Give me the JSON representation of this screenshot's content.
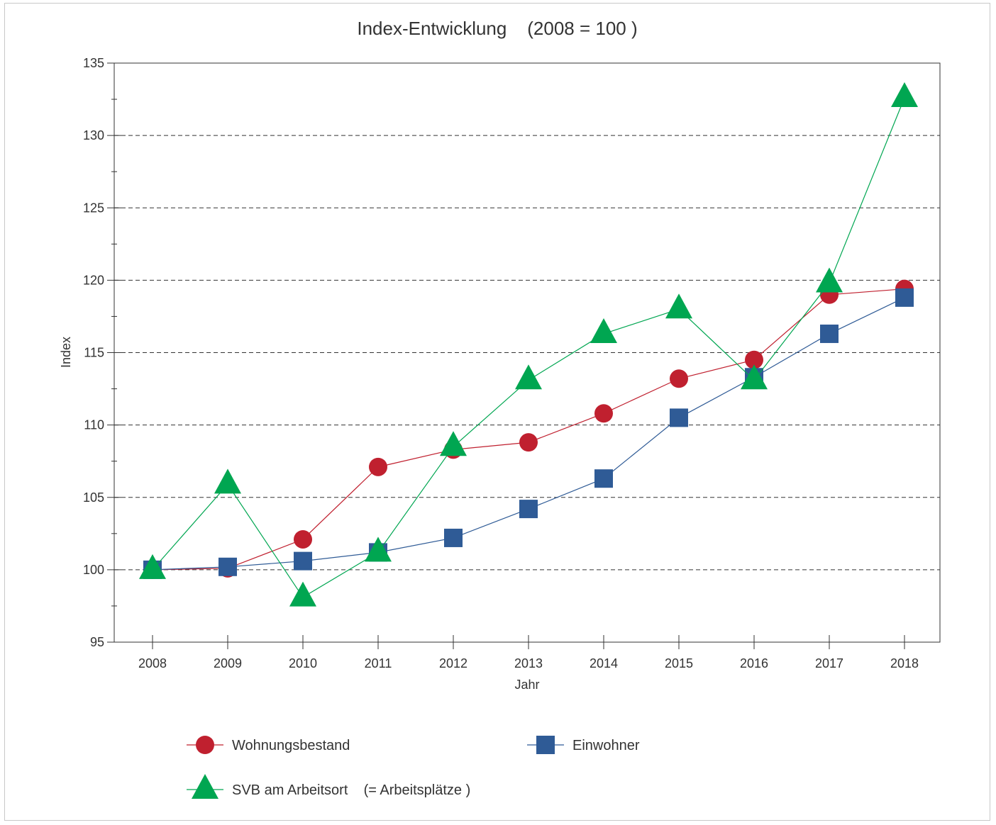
{
  "chart_data": {
    "type": "line",
    "title": "Index-Entwicklung    (2008 = 100 )",
    "xlabel": "Jahr",
    "ylabel": "Index",
    "ylim": [
      95,
      135
    ],
    "yticks": [
      95,
      100,
      105,
      110,
      115,
      120,
      125,
      130,
      135
    ],
    "grid": "horizontal dashed",
    "legend_position": "bottom",
    "categories": [
      "2008",
      "2009",
      "2010",
      "2011",
      "2012",
      "2013",
      "2014",
      "2015",
      "2016",
      "2017",
      "2018"
    ],
    "series": [
      {
        "name": "Wohnungsbestand",
        "marker": "circle",
        "color": "#c0202f",
        "values": [
          100.0,
          100.1,
          102.1,
          107.1,
          108.3,
          108.8,
          110.8,
          113.2,
          114.5,
          119.0,
          119.4
        ]
      },
      {
        "name": "Einwohner",
        "marker": "square",
        "color": "#2f5b96",
        "values": [
          100.0,
          100.2,
          100.6,
          101.2,
          102.2,
          104.2,
          106.3,
          110.5,
          113.3,
          116.3,
          118.8
        ]
      },
      {
        "name": "SVB am Arbeitsort    (= Arbeitsplätze )",
        "marker": "triangle",
        "color": "#00a651",
        "values": [
          100.0,
          105.9,
          98.1,
          101.2,
          108.5,
          113.1,
          116.3,
          118.0,
          113.1,
          119.8,
          132.6
        ]
      }
    ]
  }
}
